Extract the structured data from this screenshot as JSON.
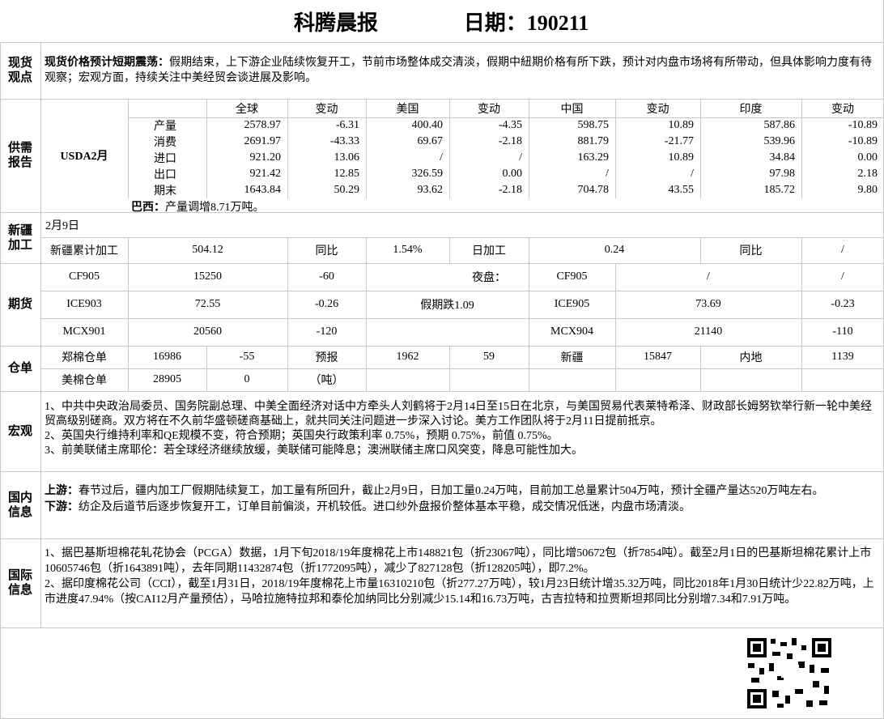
{
  "header": {
    "title": "科腾晨报",
    "date": "日期：190211"
  },
  "spot_view": {
    "label": "现货观点",
    "lead": "现货价格预计短期震荡：",
    "text": "假期结束，上下游企业陆续恢复开工，节前市场整体成交清淡，假期中紐期价格有所下跌，预计对内盘市场将有所带动，但具体影响力度有待观察；宏观方面，持续关注中美经贸会谈进展及影响。"
  },
  "supply_demand": {
    "label": "供需报告",
    "source": "USDA2月",
    "columns": [
      "全球",
      "变动",
      "美国",
      "变动",
      "中国",
      "变动",
      "印度",
      "变动"
    ],
    "rows": [
      {
        "item": "产量",
        "cells": [
          "2578.97",
          "-6.31",
          "400.40",
          "-4.35",
          "598.75",
          "10.89",
          "587.86",
          "-10.89"
        ]
      },
      {
        "item": "消费",
        "cells": [
          "2691.97",
          "-43.33",
          "69.67",
          "-2.18",
          "881.79",
          "-21.77",
          "539.96",
          "-10.89"
        ]
      },
      {
        "item": "进口",
        "cells": [
          "921.20",
          "13.06",
          "/",
          "/",
          "163.29",
          "10.89",
          "34.84",
          "0.00"
        ]
      },
      {
        "item": "出口",
        "cells": [
          "921.42",
          "12.85",
          "326.59",
          "0.00",
          "/",
          "/",
          "97.98",
          "2.18"
        ]
      },
      {
        "item": "期末",
        "cells": [
          "1643.84",
          "50.29",
          "93.62",
          "-2.18",
          "704.78",
          "43.55",
          "185.72",
          "9.80"
        ]
      }
    ],
    "note_lead": "巴西：",
    "note": "产量调增8.71万吨。"
  },
  "xinjiang": {
    "label": "新疆加工",
    "date": "2月9日",
    "row": [
      "新疆累计加工",
      "504.12",
      "同比",
      "1.54%",
      "日加工",
      "0.24",
      "同比",
      "/"
    ]
  },
  "futures": {
    "label": "期货",
    "rows": [
      {
        "contract": "CF905",
        "price": "15250",
        "change": "-60",
        "note": "夜盘：",
        "night_contract": "CF905",
        "night_price": "/",
        "night_change": "/"
      },
      {
        "contract": "ICE903",
        "price": "72.55",
        "change": "-0.26",
        "note": "假期跌1.09",
        "night_contract": "ICE905",
        "night_price": "73.69",
        "night_change": "-0.23"
      },
      {
        "contract": "MCX901",
        "price": "20560",
        "change": "-120",
        "night_contract": "MCX904",
        "night_price": "21140",
        "night_change": "-110"
      }
    ]
  },
  "warehouse": {
    "label": "仓单",
    "rows": [
      [
        "郑棉仓单",
        "16986",
        "-55",
        "预报",
        "1962",
        "59",
        "新疆",
        "15847",
        "内地",
        "1139"
      ],
      [
        "美棉仓单",
        "28905",
        "0",
        "（吨）"
      ]
    ]
  },
  "macro": {
    "label": "宏观",
    "paragraphs": [
      "1、中共中央政治局委员、国务院副总理、中美全面经济对话中方牵头人刘鹤将于2月14日至15日在北京，与美国贸易代表莱特希泽、财政部长姆努钦举行新一轮中美经贸高级别磋商。双方将在不久前华盛顿磋商基础上，就共同关注问题进一步深入讨论。美方工作团队将于2月11日提前抵京。",
      "2、英国央行维持利率和QE规模不变，符合预期；英国央行政策利率 0.75%，预期 0.75%，前值 0.75%。",
      "3、前美联储主席耶伦：若全球经济继续放缓，美联储可能降息；澳洲联储主席口风突变，降息可能性加大。"
    ]
  },
  "domestic": {
    "label": "国内信息",
    "paragraphs": [
      {
        "lead": "上游：",
        "text": "春节过后，疆内加工厂假期陆续复工，加工量有所回升，截止2月9日，日加工量0.24万吨，目前加工总量累计504万吨，预计全疆产量达520万吨左右。"
      },
      {
        "lead": "下游：",
        "text": "纺企及后道节后逐步恢复开工，订单目前偏淡，开机较低。进口纱外盘报价整体基本平稳，成交情况低迷，内盘市场清淡。"
      }
    ]
  },
  "international": {
    "label": "国际信息",
    "paragraphs": [
      "1、据巴基斯坦棉花轧花协会（PCGA）数据，1月下旬2018/19年度棉花上市148821包（折23067吨），同比增50672包（折7854吨）。截至2月1日的巴基斯坦棉花累计上市10605746包（折1643891吨），去年同期11432874包（折1772095吨），减少了827128包（折128205吨），即7.2%。",
      "2、据印度棉花公司（CCI），截至1月31日，2018/19年度棉花上市量16310210包（折277.27万吨），较1月23日统计增35.32万吨，同比2018年1月30日统计少22.82万吨，上市进度47.94%（按CAI12月产量预估），马哈拉施特拉邦和泰伦加纳同比分别减少15.14和16.73万吨，古吉拉特和拉贾斯坦邦同比分别增7.34和7.91万吨。"
    ]
  }
}
